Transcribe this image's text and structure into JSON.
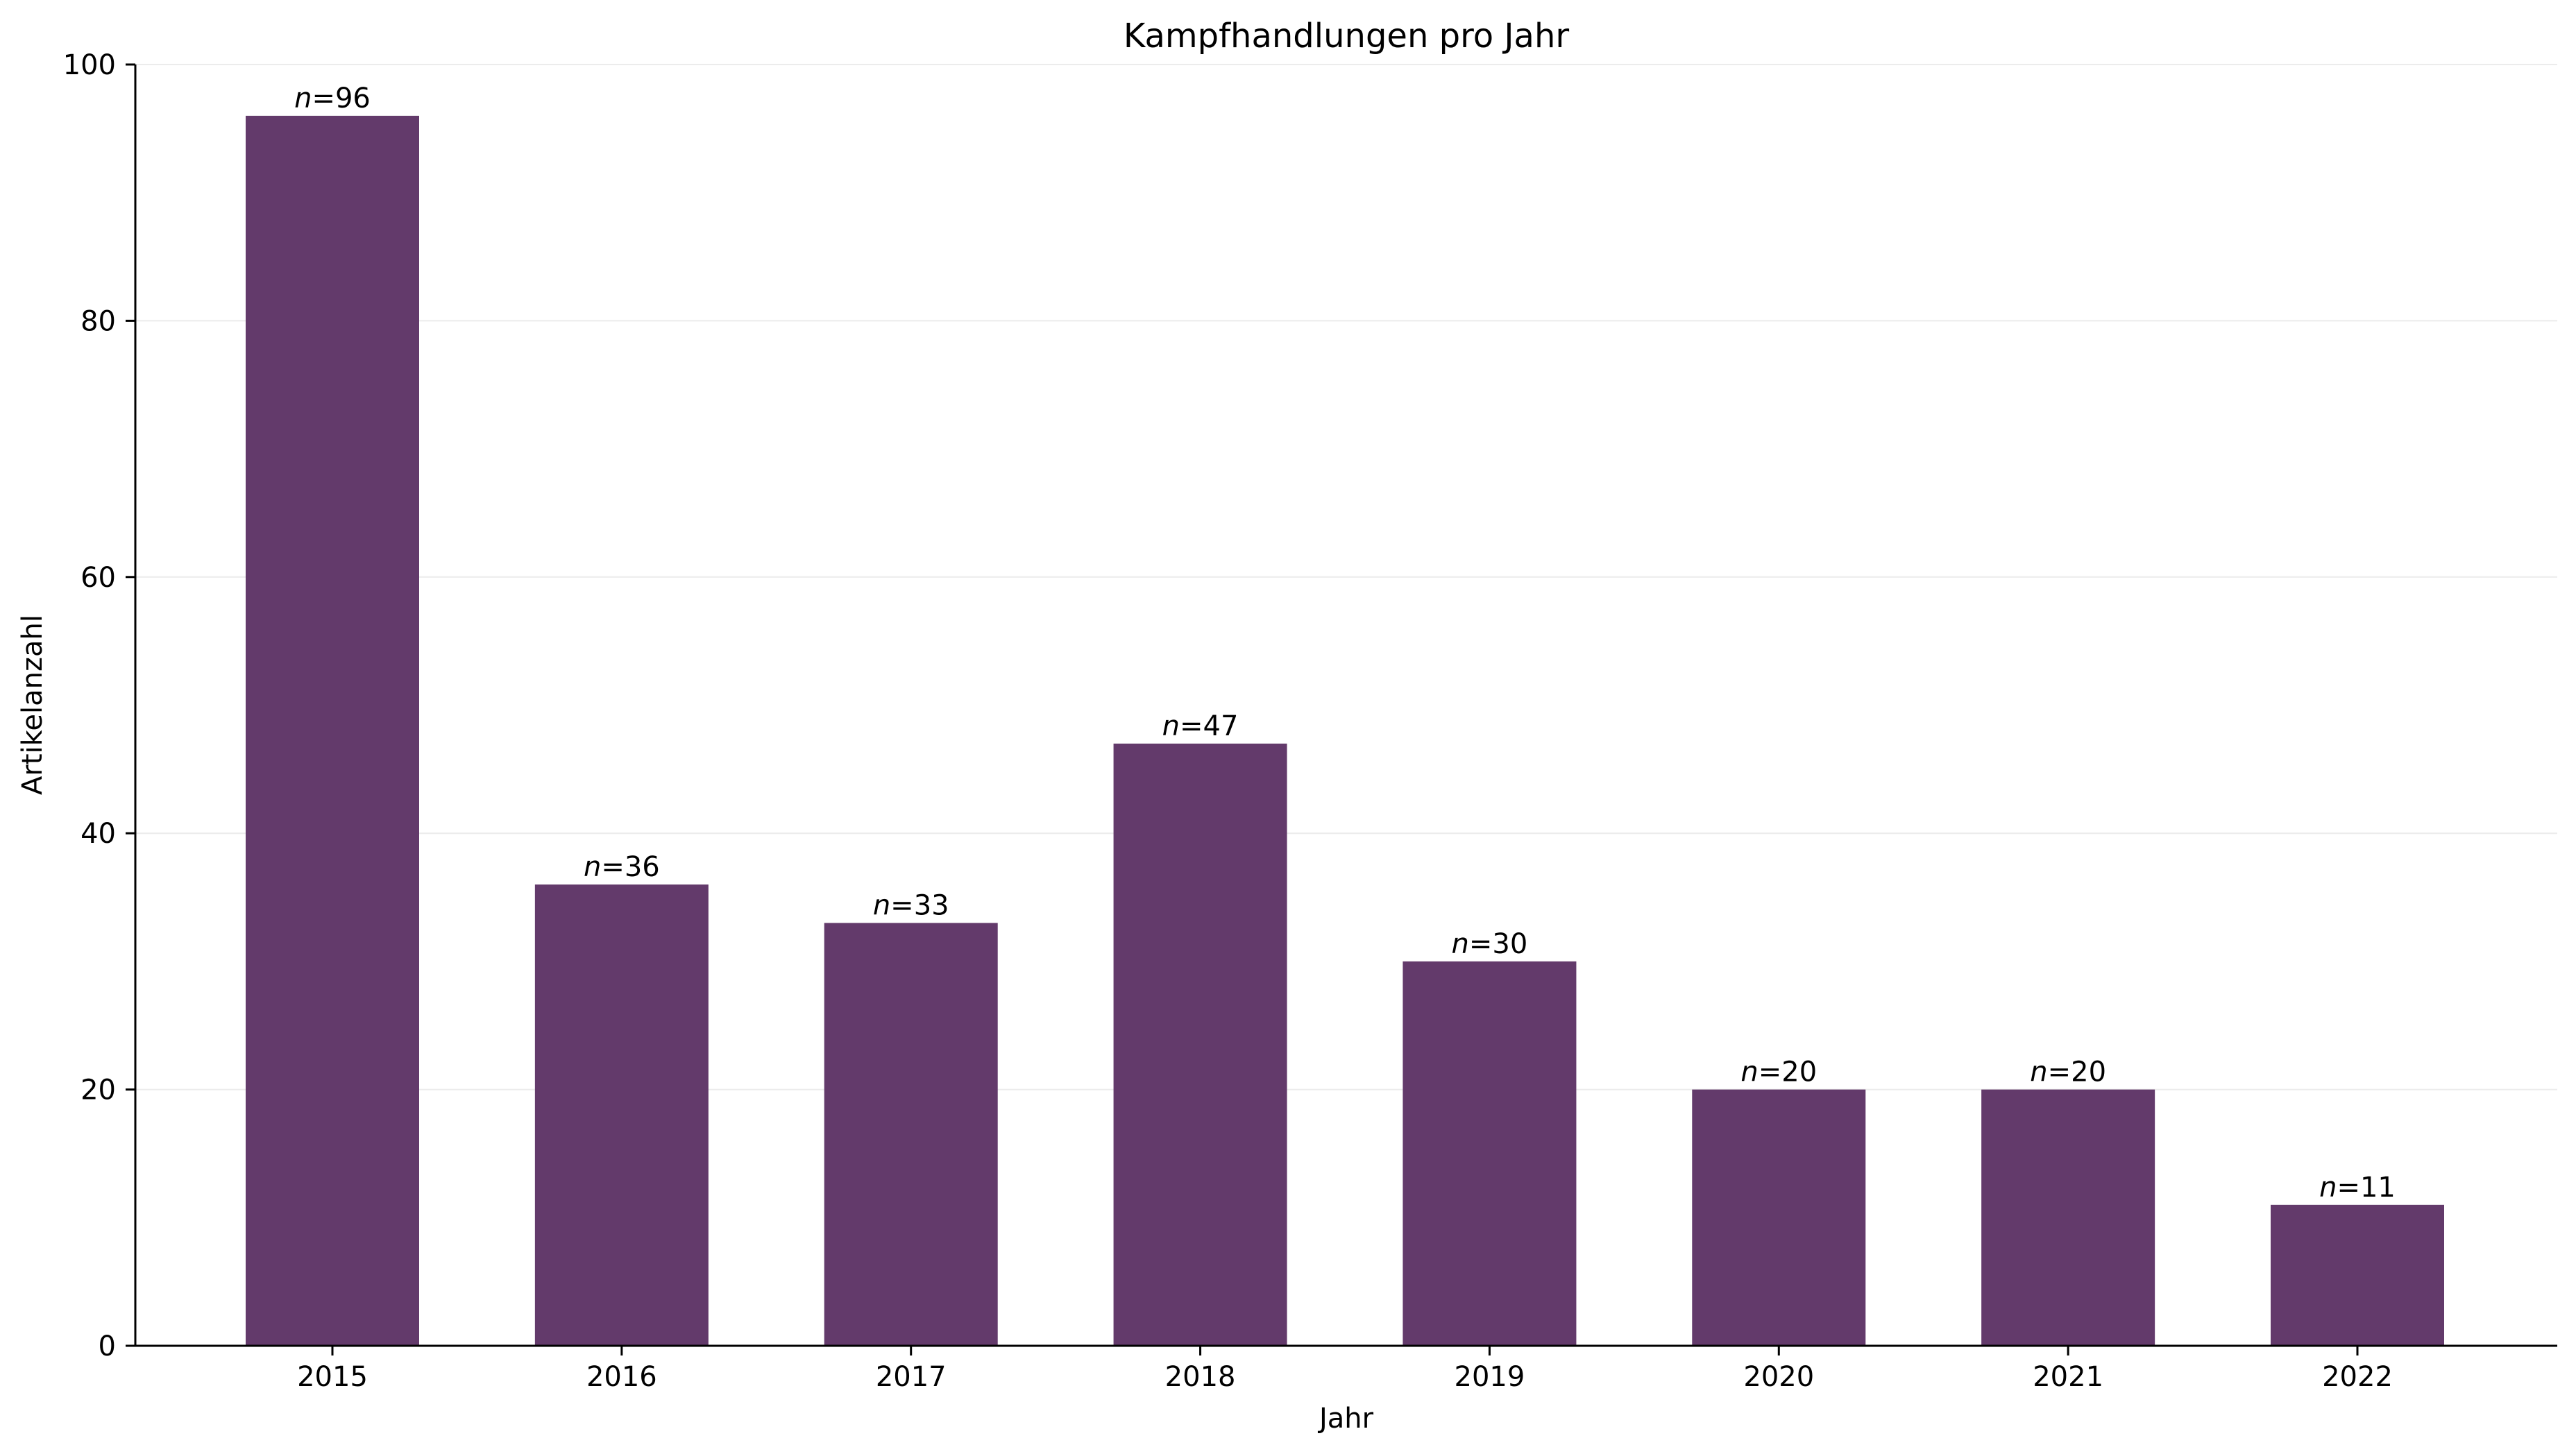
{
  "chart_data": {
    "type": "bar",
    "title": "Kampfhandlungen pro Jahr",
    "xlabel": "Jahr",
    "ylabel": "Artikelanzahl",
    "categories": [
      "2015",
      "2016",
      "2017",
      "2018",
      "2019",
      "2020",
      "2021",
      "2022"
    ],
    "values": [
      96,
      36,
      33,
      47,
      30,
      20,
      20,
      11
    ],
    "data_label_prefix": "n",
    "data_label_separator": "=",
    "ylim": [
      0,
      100
    ],
    "yticks": [
      0,
      20,
      40,
      60,
      80,
      100
    ],
    "grid": "horizontal",
    "legend": "none",
    "bar_color": "#633a6b"
  }
}
